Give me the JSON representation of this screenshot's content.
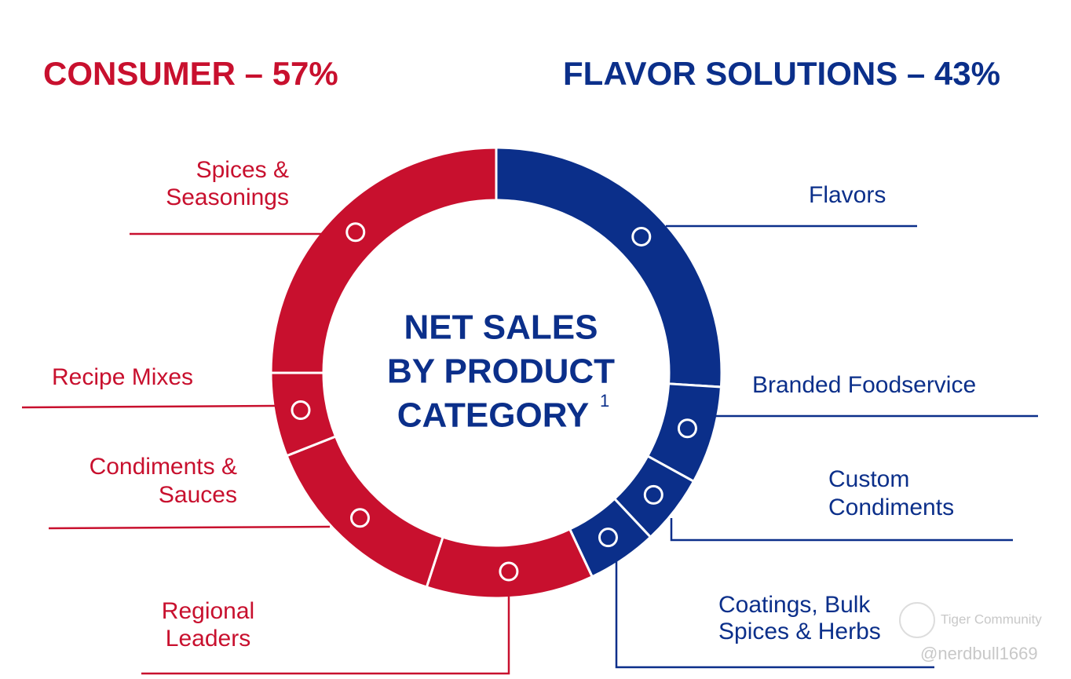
{
  "chart_data": {
    "type": "donut",
    "groups": [
      {
        "label": "CONSUMER – 57%",
        "color": "#c8102e"
      },
      {
        "label": "FLAVOR SOLUTIONS – 43%",
        "color": "#0b2f8a"
      }
    ],
    "center_text": [
      "NET SALES",
      "BY PRODUCT",
      "CATEGORY"
    ],
    "center_footnote": "1",
    "categories": [
      [
        "Flavors"
      ],
      [
        "Branded Foodservice"
      ],
      [
        "Custom",
        "Condiments"
      ],
      [
        "Coatings, Bulk",
        "Spices & Herbs"
      ],
      [
        "Regional",
        "Leaders"
      ],
      [
        "Condiments &",
        "Sauces"
      ],
      [
        "Recipe Mixes"
      ],
      [
        "Spices &",
        "Seasonings"
      ]
    ],
    "values": [
      26,
      7,
      5,
      5,
      12,
      14,
      6,
      25
    ],
    "colors": [
      "#0b2f8a",
      "#0b2f8a",
      "#0b2f8a",
      "#0b2f8a",
      "#c8102e",
      "#c8102e",
      "#c8102e",
      "#c8102e"
    ]
  },
  "watermark": {
    "brand": "Tiger Community",
    "user": "@nerdbull1669"
  }
}
